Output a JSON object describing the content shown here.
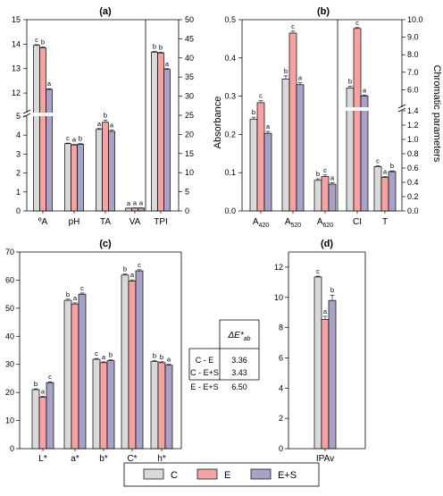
{
  "colors": {
    "C": "#d9d9d9",
    "E": "#f4a3a3",
    "ES": "#a9a2c8",
    "stroke": "#000000"
  },
  "legend": {
    "items": [
      {
        "key": "C",
        "label": "C"
      },
      {
        "key": "E",
        "label": "E"
      },
      {
        "key": "ES",
        "label": "E+S"
      }
    ]
  },
  "chart_data": [
    {
      "panel": "(a)",
      "type": "bar",
      "categories": [
        "ºA",
        "pH",
        "TA",
        "VA",
        "TPI"
      ],
      "series_names": [
        "C",
        "E",
        "E+S"
      ],
      "values": [
        [
          13.95,
          13.85,
          12.15
        ],
        [
          3.55,
          3.48,
          3.52
        ],
        [
          4.3,
          4.68,
          4.2
        ],
        [
          0.14,
          0.15,
          0.15
        ],
        [
          41.5,
          41.3,
          37.0
        ]
      ],
      "errors": [
        [
          0.03,
          0.03,
          0.03
        ],
        [
          0.03,
          0.03,
          0.03
        ],
        [
          0.05,
          0.1,
          0.08
        ],
        [
          0.01,
          0.01,
          0.01
        ],
        [
          0.2,
          0.2,
          0.2
        ]
      ],
      "letters": [
        [
          "c",
          "b",
          "a"
        ],
        [
          "c",
          "a",
          "b"
        ],
        [
          "a",
          "b",
          "a"
        ],
        [
          "a",
          "a",
          "a"
        ],
        [
          "b",
          "b",
          "a"
        ]
      ],
      "left_axis": {
        "lower_range": [
          0,
          5
        ],
        "lower_ticks": [
          0,
          1,
          2,
          3,
          4,
          5
        ],
        "upper_range": [
          11.2,
          15
        ],
        "upper_ticks": [
          12,
          13,
          14,
          15
        ],
        "break": true
      },
      "right_axis": {
        "range": [
          0,
          50
        ],
        "ticks": [
          0,
          5,
          10,
          15,
          20,
          25,
          30,
          35,
          40,
          45,
          50
        ],
        "applies_to": [
          "TPI"
        ]
      }
    },
    {
      "panel": "(b)",
      "type": "bar",
      "categories": [
        "A420",
        "A520",
        "A620",
        "CI",
        "T"
      ],
      "category_labels": [
        {
          "base": "A",
          "sub": "420"
        },
        {
          "base": "A",
          "sub": "520"
        },
        {
          "base": "A",
          "sub": "620"
        },
        {
          "base": "CI",
          "sub": ""
        },
        {
          "base": "T",
          "sub": ""
        }
      ],
      "series_names": [
        "C",
        "E",
        "E+S"
      ],
      "values": [
        [
          0.24,
          0.283,
          0.203
        ],
        [
          0.345,
          0.465,
          0.33
        ],
        [
          0.08,
          0.09,
          0.07
        ],
        [
          6.1,
          9.5,
          5.65
        ],
        [
          0.62,
          0.47,
          0.55
        ]
      ],
      "errors": [
        [
          0.005,
          0.005,
          0.005
        ],
        [
          0.008,
          0.005,
          0.005
        ],
        [
          0.004,
          0.004,
          0.004
        ],
        [
          0.1,
          0.05,
          0.05
        ],
        [
          0.01,
          0.01,
          0.01
        ]
      ],
      "letters": [
        [
          "b",
          "c",
          "a"
        ],
        [
          "b",
          "c",
          "a"
        ],
        [
          "b",
          "c",
          "a"
        ],
        [
          "b",
          "c",
          "a"
        ],
        [
          "c",
          "a",
          "b"
        ]
      ],
      "ylabel": "Absorbance",
      "y2label": "Chromatic parameters",
      "left_axis": {
        "range": [
          0,
          0.5
        ],
        "ticks": [
          0.0,
          0.1,
          0.2,
          0.3,
          0.4,
          0.5
        ]
      },
      "right_axis": {
        "lower_range": [
          0,
          1.4
        ],
        "lower_ticks": [
          0.0,
          0.2,
          0.4,
          0.6,
          0.8,
          1.0,
          1.2,
          1.4
        ],
        "upper_range": [
          5.0,
          10.0
        ],
        "upper_ticks": [
          6.0,
          7.0,
          8.0,
          9.0,
          10.0
        ],
        "break": true,
        "applies_to": [
          "CI",
          "T"
        ]
      }
    },
    {
      "panel": "(c)",
      "type": "bar",
      "categories": [
        "L*",
        "a*",
        "b*",
        "C*",
        "h*"
      ],
      "series_names": [
        "C",
        "E",
        "E+S"
      ],
      "values": [
        [
          21.0,
          18.3,
          23.5
        ],
        [
          52.8,
          51.5,
          55.0
        ],
        [
          31.8,
          30.6,
          31.3
        ],
        [
          61.8,
          59.7,
          63.3
        ],
        [
          31.0,
          30.6,
          29.7
        ]
      ],
      "errors": [
        [
          0.3,
          0.3,
          0.3
        ],
        [
          0.4,
          0.4,
          0.4
        ],
        [
          0.3,
          0.3,
          0.3
        ],
        [
          0.4,
          0.4,
          0.4
        ],
        [
          0.3,
          0.3,
          0.3
        ]
      ],
      "letters": [
        [
          "b",
          "a",
          "c"
        ],
        [
          "b",
          "a",
          "c"
        ],
        [
          "c",
          "a",
          "b"
        ],
        [
          "b",
          "a",
          "c"
        ],
        [
          "b",
          "b",
          "a"
        ]
      ],
      "ylim": [
        0,
        70
      ],
      "yticks": [
        0,
        10,
        20,
        30,
        40,
        50,
        60,
        70
      ]
    },
    {
      "panel": "(d)",
      "type": "bar",
      "categories": [
        "IPAv"
      ],
      "series_names": [
        "C",
        "E",
        "E+S"
      ],
      "values": [
        [
          11.35,
          8.55,
          9.8
        ]
      ],
      "errors": [
        [
          0.05,
          0.2,
          0.35
        ]
      ],
      "letters": [
        [
          "c",
          "a",
          "b"
        ]
      ],
      "ylim": [
        0,
        13
      ],
      "yticks": [
        0,
        2,
        4,
        6,
        8,
        10,
        12
      ]
    }
  ],
  "delta_table": {
    "header": "ΔE*ab",
    "header_symbol": "ΔE*",
    "header_sub": "ab",
    "rows": [
      {
        "pair": "C - E",
        "value": "3.36"
      },
      {
        "pair": "C - E+S",
        "value": "3.43"
      },
      {
        "pair": "E - E+S",
        "value": "6.50"
      }
    ]
  }
}
